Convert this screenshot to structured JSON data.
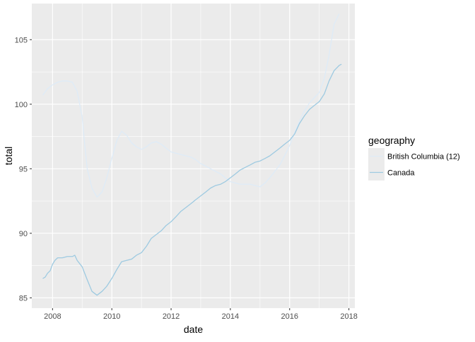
{
  "chart_data": {
    "type": "line",
    "xlabel": "date",
    "ylabel": "total",
    "xlim": [
      2007.3,
      2018.2
    ],
    "ylim": [
      84.2,
      107.8
    ],
    "x_ticks": [
      2008,
      2010,
      2012,
      2014,
      2016,
      2018
    ],
    "x_tick_labels": [
      "2008",
      "2010",
      "2012",
      "2014",
      "2016",
      "2018"
    ],
    "y_ticks": [
      85,
      90,
      95,
      100,
      105
    ],
    "y_tick_labels": [
      "85",
      "90",
      "95",
      "100",
      "105"
    ],
    "grid": true,
    "legend": {
      "title": "geography",
      "position": "right"
    },
    "series": [
      {
        "name": "British Columbia (12)",
        "color": "#deebf7",
        "points": [
          [
            2007.67,
            100.7
          ],
          [
            2007.83,
            101.2
          ],
          [
            2008.0,
            101.5
          ],
          [
            2008.17,
            101.7
          ],
          [
            2008.33,
            101.8
          ],
          [
            2008.5,
            101.8
          ],
          [
            2008.67,
            101.7
          ],
          [
            2008.83,
            101.0
          ],
          [
            2009.0,
            99.0
          ],
          [
            2009.08,
            97.0
          ],
          [
            2009.17,
            95.0
          ],
          [
            2009.33,
            93.5
          ],
          [
            2009.5,
            92.8
          ],
          [
            2009.67,
            93.2
          ],
          [
            2009.83,
            94.3
          ],
          [
            2010.0,
            95.8
          ],
          [
            2010.17,
            97.2
          ],
          [
            2010.33,
            97.9
          ],
          [
            2010.5,
            97.6
          ],
          [
            2010.67,
            97.0
          ],
          [
            2010.83,
            96.7
          ],
          [
            2011.0,
            96.5
          ],
          [
            2011.17,
            96.7
          ],
          [
            2011.33,
            97.0
          ],
          [
            2011.5,
            97.1
          ],
          [
            2011.67,
            96.9
          ],
          [
            2011.83,
            96.6
          ],
          [
            2012.0,
            96.3
          ],
          [
            2012.17,
            96.2
          ],
          [
            2012.33,
            96.1
          ],
          [
            2012.5,
            96.0
          ],
          [
            2012.67,
            95.9
          ],
          [
            2012.83,
            95.7
          ],
          [
            2013.0,
            95.4
          ],
          [
            2013.17,
            95.2
          ],
          [
            2013.33,
            95.0
          ],
          [
            2013.5,
            94.8
          ],
          [
            2013.67,
            94.6
          ],
          [
            2013.83,
            94.3
          ],
          [
            2014.0,
            94.0
          ],
          [
            2014.17,
            93.9
          ],
          [
            2014.33,
            93.8
          ],
          [
            2014.5,
            93.8
          ],
          [
            2014.67,
            93.8
          ],
          [
            2014.83,
            93.7
          ],
          [
            2015.0,
            93.6
          ],
          [
            2015.17,
            93.9
          ],
          [
            2015.33,
            94.3
          ],
          [
            2015.5,
            94.8
          ],
          [
            2015.67,
            95.3
          ],
          [
            2015.83,
            96.0
          ],
          [
            2016.0,
            96.8
          ],
          [
            2016.17,
            97.8
          ],
          [
            2016.33,
            98.7
          ],
          [
            2016.5,
            99.5
          ],
          [
            2016.67,
            100.1
          ],
          [
            2016.83,
            100.5
          ],
          [
            2017.0,
            100.9
          ],
          [
            2017.17,
            102.0
          ],
          [
            2017.33,
            103.8
          ],
          [
            2017.5,
            106.2
          ],
          [
            2017.67,
            107.0
          ]
        ]
      },
      {
        "name": "Canada",
        "color": "#9ecae1",
        "points": [
          [
            2007.67,
            86.5
          ],
          [
            2007.75,
            86.6
          ],
          [
            2007.83,
            86.9
          ],
          [
            2007.92,
            87.1
          ],
          [
            2008.0,
            87.6
          ],
          [
            2008.08,
            87.9
          ],
          [
            2008.17,
            88.1
          ],
          [
            2008.33,
            88.1
          ],
          [
            2008.5,
            88.2
          ],
          [
            2008.67,
            88.2
          ],
          [
            2008.75,
            88.3
          ],
          [
            2008.83,
            87.9
          ],
          [
            2009.0,
            87.4
          ],
          [
            2009.17,
            86.4
          ],
          [
            2009.33,
            85.5
          ],
          [
            2009.5,
            85.2
          ],
          [
            2009.67,
            85.5
          ],
          [
            2009.83,
            85.9
          ],
          [
            2010.0,
            86.5
          ],
          [
            2010.17,
            87.2
          ],
          [
            2010.33,
            87.8
          ],
          [
            2010.5,
            87.9
          ],
          [
            2010.67,
            88.0
          ],
          [
            2010.83,
            88.3
          ],
          [
            2011.0,
            88.5
          ],
          [
            2011.17,
            89.0
          ],
          [
            2011.33,
            89.6
          ],
          [
            2011.5,
            89.9
          ],
          [
            2011.67,
            90.2
          ],
          [
            2011.83,
            90.6
          ],
          [
            2012.0,
            90.9
          ],
          [
            2012.17,
            91.3
          ],
          [
            2012.33,
            91.7
          ],
          [
            2012.5,
            92.0
          ],
          [
            2012.67,
            92.3
          ],
          [
            2012.83,
            92.6
          ],
          [
            2013.0,
            92.9
          ],
          [
            2013.17,
            93.2
          ],
          [
            2013.33,
            93.5
          ],
          [
            2013.5,
            93.7
          ],
          [
            2013.67,
            93.8
          ],
          [
            2013.83,
            94.0
          ],
          [
            2014.0,
            94.3
          ],
          [
            2014.17,
            94.6
          ],
          [
            2014.33,
            94.9
          ],
          [
            2014.5,
            95.1
          ],
          [
            2014.67,
            95.3
          ],
          [
            2014.83,
            95.5
          ],
          [
            2015.0,
            95.6
          ],
          [
            2015.17,
            95.8
          ],
          [
            2015.33,
            96.0
          ],
          [
            2015.5,
            96.3
          ],
          [
            2015.67,
            96.6
          ],
          [
            2015.83,
            96.9
          ],
          [
            2016.0,
            97.2
          ],
          [
            2016.17,
            97.7
          ],
          [
            2016.33,
            98.5
          ],
          [
            2016.5,
            99.1
          ],
          [
            2016.67,
            99.6
          ],
          [
            2016.83,
            99.9
          ],
          [
            2017.0,
            100.2
          ],
          [
            2017.17,
            100.8
          ],
          [
            2017.33,
            101.8
          ],
          [
            2017.5,
            102.6
          ],
          [
            2017.67,
            103.0
          ],
          [
            2017.75,
            103.1
          ]
        ]
      }
    ]
  }
}
